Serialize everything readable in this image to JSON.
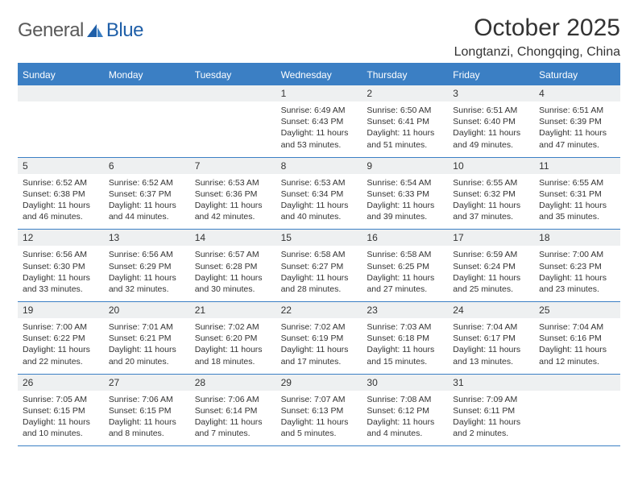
{
  "brand": {
    "name": "General",
    "accent_word": "Blue"
  },
  "title": "October 2025",
  "location": "Longtanzi, Chongqing, China",
  "colors": {
    "header_blue": "#3b7fc4",
    "row_band": "#eef0f1",
    "text": "#333333",
    "background": "#ffffff"
  },
  "typography": {
    "title_fontsize_pt": 22,
    "location_fontsize_pt": 12,
    "dow_fontsize_pt": 9,
    "body_fontsize_pt": 8
  },
  "calendar": {
    "type": "month-grid",
    "columns": [
      "Sunday",
      "Monday",
      "Tuesday",
      "Wednesday",
      "Thursday",
      "Friday",
      "Saturday"
    ],
    "first_weekday_index": 3,
    "days": [
      {
        "n": "1",
        "sunrise": "6:49 AM",
        "sunset": "6:43 PM",
        "daylight": "11 hours and 53 minutes."
      },
      {
        "n": "2",
        "sunrise": "6:50 AM",
        "sunset": "6:41 PM",
        "daylight": "11 hours and 51 minutes."
      },
      {
        "n": "3",
        "sunrise": "6:51 AM",
        "sunset": "6:40 PM",
        "daylight": "11 hours and 49 minutes."
      },
      {
        "n": "4",
        "sunrise": "6:51 AM",
        "sunset": "6:39 PM",
        "daylight": "11 hours and 47 minutes."
      },
      {
        "n": "5",
        "sunrise": "6:52 AM",
        "sunset": "6:38 PM",
        "daylight": "11 hours and 46 minutes."
      },
      {
        "n": "6",
        "sunrise": "6:52 AM",
        "sunset": "6:37 PM",
        "daylight": "11 hours and 44 minutes."
      },
      {
        "n": "7",
        "sunrise": "6:53 AM",
        "sunset": "6:36 PM",
        "daylight": "11 hours and 42 minutes."
      },
      {
        "n": "8",
        "sunrise": "6:53 AM",
        "sunset": "6:34 PM",
        "daylight": "11 hours and 40 minutes."
      },
      {
        "n": "9",
        "sunrise": "6:54 AM",
        "sunset": "6:33 PM",
        "daylight": "11 hours and 39 minutes."
      },
      {
        "n": "10",
        "sunrise": "6:55 AM",
        "sunset": "6:32 PM",
        "daylight": "11 hours and 37 minutes."
      },
      {
        "n": "11",
        "sunrise": "6:55 AM",
        "sunset": "6:31 PM",
        "daylight": "11 hours and 35 minutes."
      },
      {
        "n": "12",
        "sunrise": "6:56 AM",
        "sunset": "6:30 PM",
        "daylight": "11 hours and 33 minutes."
      },
      {
        "n": "13",
        "sunrise": "6:56 AM",
        "sunset": "6:29 PM",
        "daylight": "11 hours and 32 minutes."
      },
      {
        "n": "14",
        "sunrise": "6:57 AM",
        "sunset": "6:28 PM",
        "daylight": "11 hours and 30 minutes."
      },
      {
        "n": "15",
        "sunrise": "6:58 AM",
        "sunset": "6:27 PM",
        "daylight": "11 hours and 28 minutes."
      },
      {
        "n": "16",
        "sunrise": "6:58 AM",
        "sunset": "6:25 PM",
        "daylight": "11 hours and 27 minutes."
      },
      {
        "n": "17",
        "sunrise": "6:59 AM",
        "sunset": "6:24 PM",
        "daylight": "11 hours and 25 minutes."
      },
      {
        "n": "18",
        "sunrise": "7:00 AM",
        "sunset": "6:23 PM",
        "daylight": "11 hours and 23 minutes."
      },
      {
        "n": "19",
        "sunrise": "7:00 AM",
        "sunset": "6:22 PM",
        "daylight": "11 hours and 22 minutes."
      },
      {
        "n": "20",
        "sunrise": "7:01 AM",
        "sunset": "6:21 PM",
        "daylight": "11 hours and 20 minutes."
      },
      {
        "n": "21",
        "sunrise": "7:02 AM",
        "sunset": "6:20 PM",
        "daylight": "11 hours and 18 minutes."
      },
      {
        "n": "22",
        "sunrise": "7:02 AM",
        "sunset": "6:19 PM",
        "daylight": "11 hours and 17 minutes."
      },
      {
        "n": "23",
        "sunrise": "7:03 AM",
        "sunset": "6:18 PM",
        "daylight": "11 hours and 15 minutes."
      },
      {
        "n": "24",
        "sunrise": "7:04 AM",
        "sunset": "6:17 PM",
        "daylight": "11 hours and 13 minutes."
      },
      {
        "n": "25",
        "sunrise": "7:04 AM",
        "sunset": "6:16 PM",
        "daylight": "11 hours and 12 minutes."
      },
      {
        "n": "26",
        "sunrise": "7:05 AM",
        "sunset": "6:15 PM",
        "daylight": "11 hours and 10 minutes."
      },
      {
        "n": "27",
        "sunrise": "7:06 AM",
        "sunset": "6:15 PM",
        "daylight": "11 hours and 8 minutes."
      },
      {
        "n": "28",
        "sunrise": "7:06 AM",
        "sunset": "6:14 PM",
        "daylight": "11 hours and 7 minutes."
      },
      {
        "n": "29",
        "sunrise": "7:07 AM",
        "sunset": "6:13 PM",
        "daylight": "11 hours and 5 minutes."
      },
      {
        "n": "30",
        "sunrise": "7:08 AM",
        "sunset": "6:12 PM",
        "daylight": "11 hours and 4 minutes."
      },
      {
        "n": "31",
        "sunrise": "7:09 AM",
        "sunset": "6:11 PM",
        "daylight": "11 hours and 2 minutes."
      }
    ],
    "labels": {
      "sunrise": "Sunrise:",
      "sunset": "Sunset:",
      "daylight": "Daylight:"
    }
  }
}
